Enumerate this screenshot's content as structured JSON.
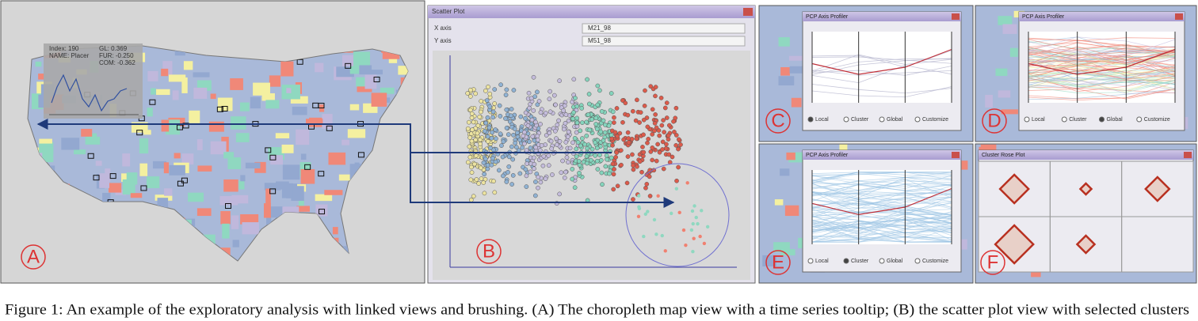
{
  "panels": {
    "map": {
      "label": "A",
      "tooltip": [
        "Index: 190",
        "NAME: Placer",
        "GL: 0.369",
        "FUR: -0.250",
        "COM: -0.362"
      ]
    },
    "scatter": {
      "label": "B",
      "window_title": "Scatter Plot",
      "x_axis_label": "X axis",
      "y_axis_label": "Y axis",
      "x_field": "M21_98",
      "y_field": "M51_98"
    },
    "pcp_local": {
      "label": "C",
      "window_title": "PCP Axis Profiler",
      "selected": "Local"
    },
    "pcp_global": {
      "label": "D",
      "window_title": "PCP Axis Profiler",
      "selected": "Global"
    },
    "pcp_cluster": {
      "label": "E",
      "window_title": "PCP Axis Profiler",
      "selected": "Cluster"
    },
    "rose": {
      "label": "F",
      "window_title": "Cluster Rose Plot"
    }
  },
  "radio_options": [
    "Local",
    "Cluster",
    "Global",
    "Customize"
  ],
  "caption": "Figure 1: An example of the exploratory analysis with linked views and brushing. (A) The choropleth map view with a time series tooltip; (B) the scatter plot view with selected clusters"
}
